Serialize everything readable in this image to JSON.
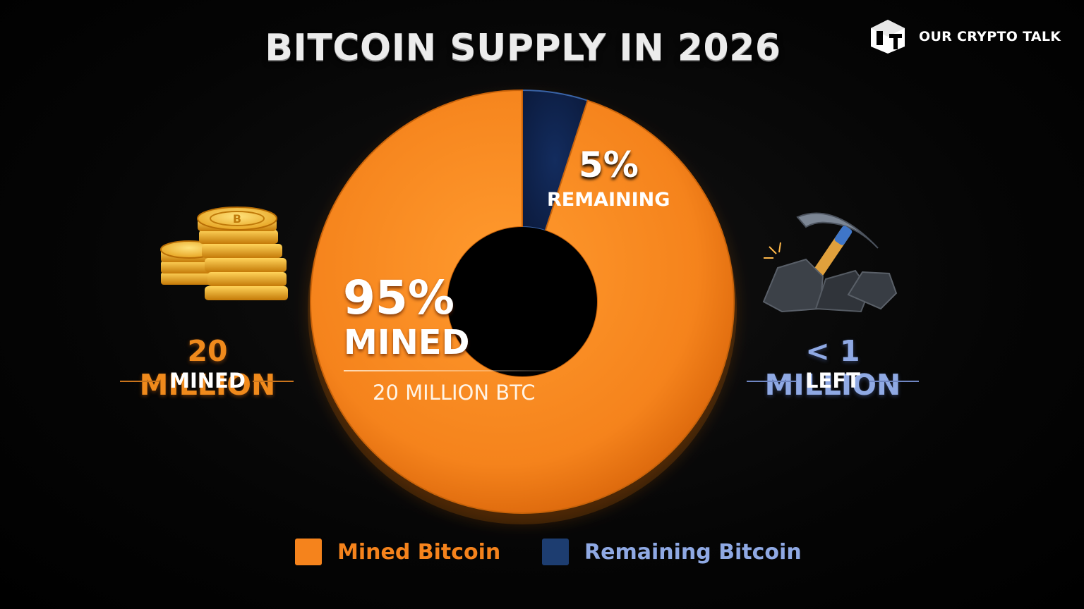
{
  "brand": {
    "name": "OUR CRYPTO TALK"
  },
  "colors": {
    "mined": "#f5831c",
    "remaining": "#0f2550",
    "remaining_text": "#8fa9e4",
    "background": "#000000"
  },
  "chart_data": {
    "type": "pie",
    "variant": "donut",
    "title": "BITCOIN SUPPLY IN 2026",
    "slices": [
      {
        "name": "Mined Bitcoin",
        "value": 95,
        "color": "#f5831c",
        "percent_label": "95%",
        "word_label": "MINED",
        "sub_label": "20 MILLION BTC"
      },
      {
        "name": "Remaining Bitcoin",
        "value": 5,
        "color": "#0f2550",
        "percent_label": "5%",
        "word_label": "REMAINING"
      }
    ],
    "legend": [
      "Mined Bitcoin",
      "Remaining Bitcoin"
    ],
    "legend_position": "bottom"
  },
  "callouts": {
    "left": {
      "value": "20 MILLION",
      "label": "MINED",
      "icon": "coins-stack-icon"
    },
    "right": {
      "value": "< 1 MILLION",
      "label": "LEFT",
      "icon": "pickaxe-icon"
    }
  }
}
